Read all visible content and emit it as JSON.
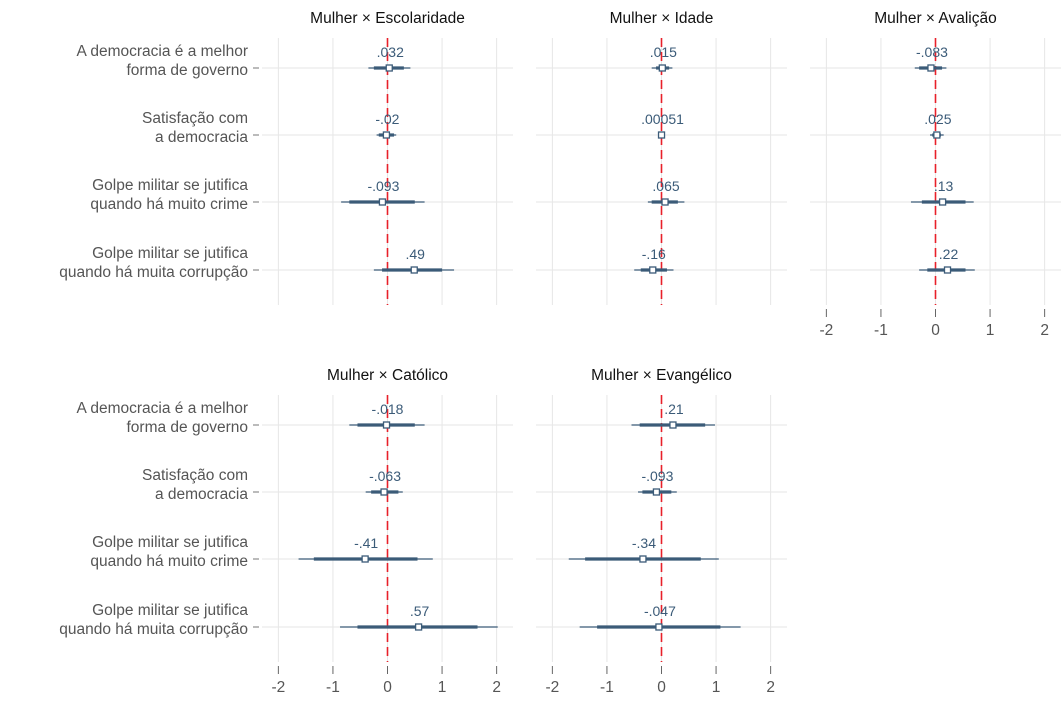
{
  "chart_data": {
    "type": "coefficient-plot",
    "reference_line": {
      "x": 0,
      "color": "#e8202a",
      "style": "dashed"
    },
    "categories": [
      [
        "A democracia é a melhor",
        "forma de governo"
      ],
      [
        "Satisfação com",
        "a democracia"
      ],
      [
        "Golpe militar se jutifica",
        "quando há muito crime"
      ],
      [
        "Golpe militar se jutifica",
        "quando há muita corrupção"
      ]
    ],
    "xlim": [
      -2.3,
      2.3
    ],
    "xticks": [
      -2,
      -1,
      0,
      1,
      2
    ],
    "xtick_labels": [
      "-2",
      "-1",
      "0",
      "1",
      "2"
    ],
    "grid": true,
    "colors": {
      "marker": "#3b5b78",
      "label": "#3b5b78",
      "refline": "#e8202a",
      "grid": "#e6e6e6",
      "text": "#555555"
    },
    "panels": [
      {
        "title": "Mulher × Escolaridade",
        "points": [
          {
            "value": 0.032,
            "label": ".032",
            "ci90": [
              -0.25,
              0.3
            ],
            "ci95": [
              -0.35,
              0.42
            ]
          },
          {
            "value": -0.02,
            "label": "-.02",
            "ci90": [
              -0.16,
              0.12
            ],
            "ci95": [
              -0.2,
              0.16
            ]
          },
          {
            "value": -0.093,
            "label": "-.093",
            "ci90": [
              -0.7,
              0.5
            ],
            "ci95": [
              -0.85,
              0.68
            ]
          },
          {
            "value": 0.49,
            "label": ".49",
            "ci90": [
              -0.1,
              1.0
            ],
            "ci95": [
              -0.25,
              1.22
            ]
          }
        ]
      },
      {
        "title": "Mulher × Idade",
        "points": [
          {
            "value": 0.015,
            "label": ".015",
            "ci90": [
              -0.1,
              0.14
            ],
            "ci95": [
              -0.18,
              0.2
            ]
          },
          {
            "value": 0.00051,
            "label": ".00051",
            "ci90": [
              -0.03,
              0.03
            ],
            "ci95": [
              -0.05,
              0.05
            ]
          },
          {
            "value": 0.065,
            "label": ".065",
            "ci90": [
              -0.18,
              0.3
            ],
            "ci95": [
              -0.25,
              0.42
            ]
          },
          {
            "value": -0.16,
            "label": "-.16",
            "ci90": [
              -0.38,
              0.1
            ],
            "ci95": [
              -0.5,
              0.22
            ]
          }
        ]
      },
      {
        "title": "Mulher × Avalição",
        "points": [
          {
            "value": -0.083,
            "label": "-.083",
            "ci90": [
              -0.3,
              0.12
            ],
            "ci95": [
              -0.38,
              0.2
            ]
          },
          {
            "value": 0.025,
            "label": ".025",
            "ci90": [
              -0.06,
              0.1
            ],
            "ci95": [
              -0.1,
              0.15
            ]
          },
          {
            "value": 0.13,
            "label": ".13",
            "ci90": [
              -0.25,
              0.55
            ],
            "ci95": [
              -0.45,
              0.7
            ]
          },
          {
            "value": 0.22,
            "label": ".22",
            "ci90": [
              -0.15,
              0.55
            ],
            "ci95": [
              -0.3,
              0.72
            ]
          }
        ]
      },
      {
        "title": "Mulher × Católico",
        "points": [
          {
            "value": -0.018,
            "label": "-.018",
            "ci90": [
              -0.55,
              0.5
            ],
            "ci95": [
              -0.7,
              0.68
            ]
          },
          {
            "value": -0.063,
            "label": "-.063",
            "ci90": [
              -0.3,
              0.2
            ],
            "ci95": [
              -0.4,
              0.28
            ]
          },
          {
            "value": -0.41,
            "label": "-.41",
            "ci90": [
              -1.35,
              0.55
            ],
            "ci95": [
              -1.63,
              0.83
            ]
          },
          {
            "value": 0.57,
            "label": ".57",
            "ci90": [
              -0.55,
              1.65
            ],
            "ci95": [
              -0.87,
              2.02
            ]
          }
        ]
      },
      {
        "title": "Mulher × Evangélico",
        "points": [
          {
            "value": 0.21,
            "label": ".21",
            "ci90": [
              -0.4,
              0.8
            ],
            "ci95": [
              -0.55,
              0.98
            ]
          },
          {
            "value": -0.093,
            "label": "-.093",
            "ci90": [
              -0.35,
              0.18
            ],
            "ci95": [
              -0.43,
              0.28
            ]
          },
          {
            "value": -0.34,
            "label": "-.34",
            "ci90": [
              -1.4,
              0.72
            ],
            "ci95": [
              -1.7,
              1.05
            ]
          },
          {
            "value": -0.047,
            "label": "-.047",
            "ci90": [
              -1.18,
              1.08
            ],
            "ci95": [
              -1.5,
              1.45
            ]
          }
        ]
      }
    ]
  }
}
